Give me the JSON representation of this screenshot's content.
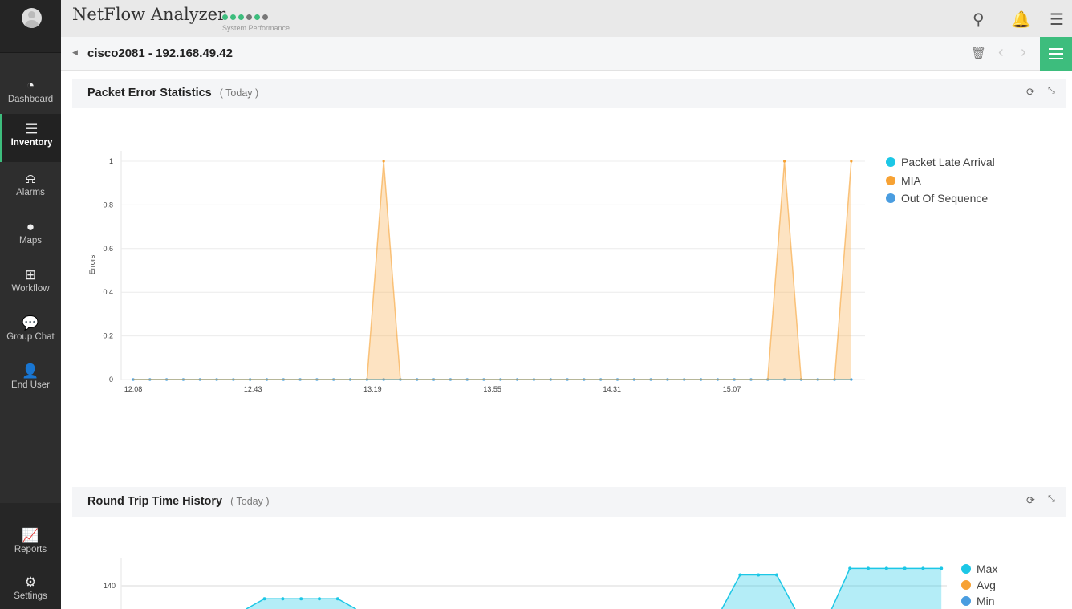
{
  "app": {
    "title": "NetFlow Analyzer",
    "performance_label": "System Performance",
    "performance_dots": [
      "#3dbd7d",
      "#3dbd7d",
      "#3dbd7d",
      "#777777",
      "#3dbd7d",
      "#777777"
    ]
  },
  "sidebar": {
    "items": [
      {
        "label": "Dashboard",
        "icon": "gauge-icon"
      },
      {
        "label": "Inventory",
        "icon": "inventory-icon",
        "active": true
      },
      {
        "label": "Alarms",
        "icon": "alarm-icon"
      },
      {
        "label": "Maps",
        "icon": "map-pin-icon"
      },
      {
        "label": "Workflow",
        "icon": "workflow-icon"
      },
      {
        "label": "Group Chat",
        "icon": "chat-icon"
      },
      {
        "label": "End User",
        "icon": "user-icon"
      }
    ],
    "bottom": [
      {
        "label": "Reports",
        "icon": "reports-icon"
      },
      {
        "label": "Settings",
        "icon": "gear-icon"
      }
    ]
  },
  "device": {
    "title": "cisco2081 - 192.168.49.42"
  },
  "accent": "#3dbd7d",
  "chart_data": [
    {
      "type": "area",
      "title": "Packet Error Statistics",
      "subtitle": "( Today )",
      "ylabel": "Errors",
      "ylim": [
        0,
        1
      ],
      "yticks": [
        "0",
        "0.2",
        "0.4",
        "0.6",
        "0.8",
        "1"
      ],
      "xticks": [
        "12:08",
        "12:43",
        "13:19",
        "13:55",
        "14:31",
        "15:07"
      ],
      "x_start": "12:08",
      "x_interval_minutes": 5,
      "grid": true,
      "legend": "right",
      "series": [
        {
          "name": "Packet Late Arrival",
          "color": "#1cc7e6",
          "values": [
            0,
            0,
            0,
            0,
            0,
            0,
            0,
            0,
            0,
            0,
            0,
            0,
            0,
            0,
            0,
            0,
            0,
            0,
            0,
            0,
            0,
            0,
            0,
            0,
            0,
            0,
            0,
            0,
            0,
            0,
            0,
            0,
            0,
            0,
            0,
            0,
            0,
            0,
            0,
            0,
            0,
            0,
            0,
            0
          ]
        },
        {
          "name": "MIA",
          "color": "#f7a234",
          "values": [
            0,
            0,
            0,
            0,
            0,
            0,
            0,
            0,
            0,
            0,
            0,
            0,
            0,
            0,
            0,
            1,
            0,
            0,
            0,
            0,
            0,
            0,
            0,
            0,
            0,
            0,
            0,
            0,
            0,
            0,
            0,
            0,
            0,
            0,
            0,
            0,
            0,
            0,
            0,
            1,
            0,
            0,
            0,
            1
          ]
        },
        {
          "name": "Out Of Sequence",
          "color": "#4a9de0",
          "values": [
            0,
            0,
            0,
            0,
            0,
            0,
            0,
            0,
            0,
            0,
            0,
            0,
            0,
            0,
            0,
            0,
            0,
            0,
            0,
            0,
            0,
            0,
            0,
            0,
            0,
            0,
            0,
            0,
            0,
            0,
            0,
            0,
            0,
            0,
            0,
            0,
            0,
            0,
            0,
            0,
            0,
            0,
            0,
            0
          ]
        }
      ]
    },
    {
      "type": "area",
      "title": "Round Trip Time History",
      "subtitle": "( Today )",
      "yticks": [
        "140"
      ],
      "grid": true,
      "legend": "right",
      "series": [
        {
          "name": "Max",
          "color": "#1cc7e6",
          "values": [
            null,
            null,
            null,
            null,
            null,
            null,
            100,
            134,
            134,
            134,
            134,
            134,
            100,
            null,
            null,
            null,
            null,
            null,
            null,
            null,
            null,
            null,
            null,
            null,
            null,
            null,
            null,
            null,
            null,
            null,
            null,
            null,
            100,
            145,
            145,
            145,
            100,
            null,
            100,
            148,
            148,
            148,
            148,
            148,
            148
          ]
        },
        {
          "name": "Avg",
          "color": "#f7a234",
          "values": []
        },
        {
          "name": "Min",
          "color": "#4a9de0",
          "values": []
        }
      ]
    }
  ]
}
